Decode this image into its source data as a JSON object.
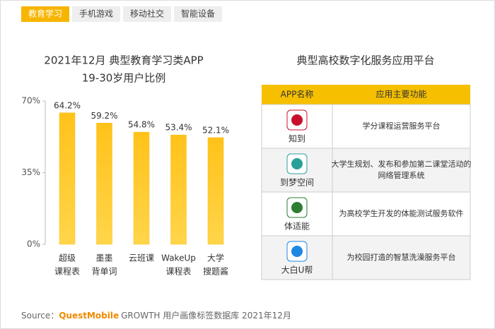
{
  "tabs": [
    "教育学习",
    "手机游戏",
    "移动社交",
    "智能设备"
  ],
  "chart_data": {
    "type": "bar",
    "title": "2021年12月 典型教育学习类APP",
    "subtitle": "19-30岁用户比例",
    "categories": [
      [
        "超级",
        "课程表"
      ],
      [
        "墨墨",
        "背单词"
      ],
      [
        "云班课"
      ],
      [
        "WakeUp",
        "课程表"
      ],
      [
        "大学",
        "搜题酱"
      ]
    ],
    "values": [
      64.2,
      59.2,
      54.8,
      53.4,
      52.1
    ],
    "value_labels": [
      "64.2%",
      "59.2%",
      "54.8%",
      "53.4%",
      "52.1%"
    ],
    "color": "#fbbf12",
    "ylim": [
      0,
      70
    ],
    "yticks": [
      {
        "value": 0,
        "label": "0%"
      },
      {
        "value": 35,
        "label": "35%"
      },
      {
        "value": 70,
        "label": "70%"
      }
    ]
  },
  "table": {
    "title": "典型高校数字化服务应用平台",
    "header": [
      "APP名称",
      "应用主要功能"
    ],
    "rows": [
      [
        "知到",
        "学分课程运营服务平台"
      ],
      [
        "到梦空间",
        "大学生规划、发布和参加第二课堂活动的网络管理系统"
      ],
      [
        "体适能",
        "为高校学生开发的体能测试服务软件"
      ],
      [
        "大白U帮",
        "为校园打造的智慧洗澡服务平台"
      ]
    ]
  },
  "source": {
    "prefix": "Source：",
    "brand": "QuestMobile",
    "rest": "GROWTH 用户画像标签数据库 2021年12月"
  }
}
